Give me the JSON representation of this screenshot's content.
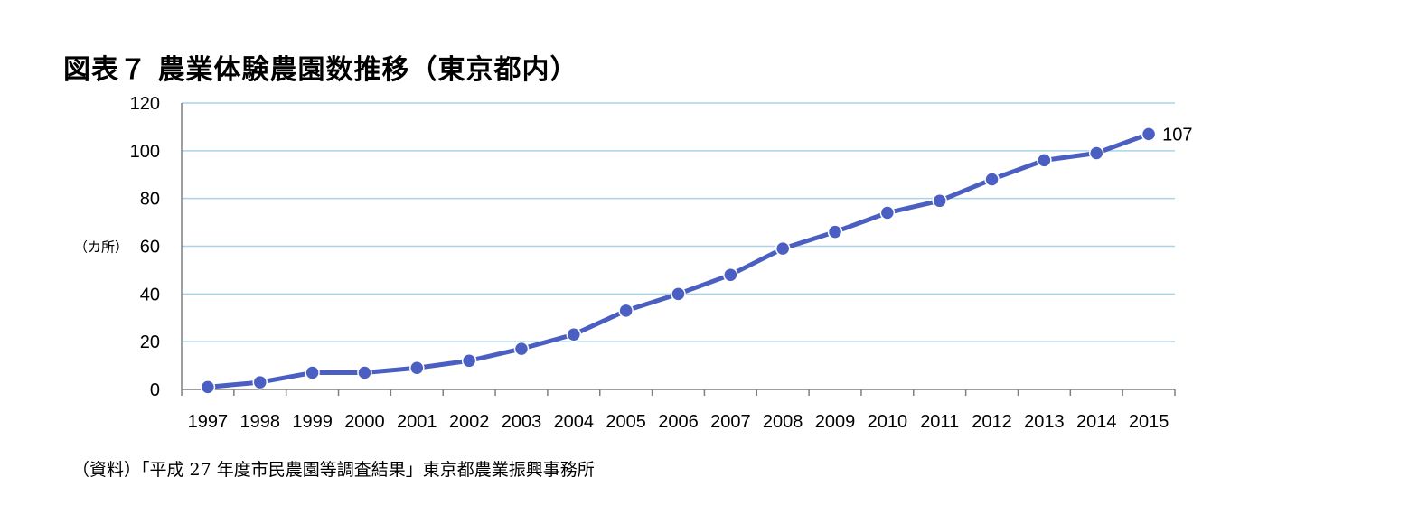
{
  "title": "図表７ 農業体験農園数推移（東京都内）",
  "source": "（資料）「平成 27 年度市民農園等調査結果」東京都農業振興事務所",
  "colors": {
    "series": "#4a5fc1",
    "grid": "#a9d4e8",
    "axis": "#7f7f7f"
  },
  "chart_data": {
    "type": "line",
    "title": "図表７ 農業体験農園数推移（東京都内）",
    "xlabel": "",
    "ylabel": "（カ所）",
    "categories": [
      "1997",
      "1998",
      "1999",
      "2000",
      "2001",
      "2002",
      "2003",
      "2004",
      "2005",
      "2006",
      "2007",
      "2008",
      "2009",
      "2010",
      "2011",
      "2012",
      "2013",
      "2014",
      "2015"
    ],
    "series": [
      {
        "name": "農業体験農園数",
        "values": [
          1,
          3,
          7,
          7,
          9,
          12,
          17,
          23,
          33,
          40,
          48,
          59,
          66,
          74,
          79,
          88,
          96,
          99,
          107
        ]
      }
    ],
    "ylim": [
      0,
      120
    ],
    "yticks": [
      0,
      20,
      40,
      60,
      80,
      100,
      120
    ],
    "grid": true,
    "data_labels": [
      {
        "index": 18,
        "text": "107"
      }
    ]
  }
}
